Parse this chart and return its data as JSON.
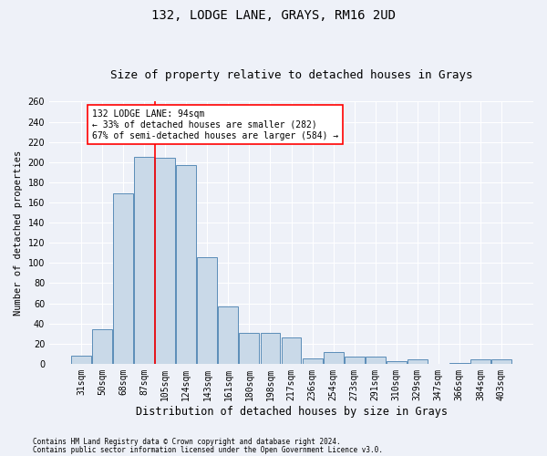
{
  "title1": "132, LODGE LANE, GRAYS, RM16 2UD",
  "title2": "Size of property relative to detached houses in Grays",
  "xlabel": "Distribution of detached houses by size in Grays",
  "ylabel": "Number of detached properties",
  "categories": [
    "31sqm",
    "50sqm",
    "68sqm",
    "87sqm",
    "105sqm",
    "124sqm",
    "143sqm",
    "161sqm",
    "180sqm",
    "198sqm",
    "217sqm",
    "236sqm",
    "254sqm",
    "273sqm",
    "291sqm",
    "310sqm",
    "329sqm",
    "347sqm",
    "366sqm",
    "384sqm",
    "403sqm"
  ],
  "values": [
    8,
    34,
    169,
    205,
    204,
    197,
    106,
    57,
    31,
    31,
    26,
    5,
    12,
    7,
    7,
    3,
    4,
    0,
    1,
    4,
    4
  ],
  "bar_color": "#c9d9e8",
  "bar_edge_color": "#5b8db8",
  "red_line_x": 3.5,
  "annotation_text": "132 LODGE LANE: 94sqm\n← 33% of detached houses are smaller (282)\n67% of semi-detached houses are larger (584) →",
  "annotation_box_color": "white",
  "annotation_box_edge_color": "red",
  "footnote1": "Contains HM Land Registry data © Crown copyright and database right 2024.",
  "footnote2": "Contains public sector information licensed under the Open Government Licence v3.0.",
  "ylim": [
    0,
    260
  ],
  "yticks": [
    0,
    20,
    40,
    60,
    80,
    100,
    120,
    140,
    160,
    180,
    200,
    220,
    240,
    260
  ],
  "background_color": "#eef1f8",
  "grid_color": "white",
  "title1_fontsize": 10,
  "title2_fontsize": 9,
  "xlabel_fontsize": 8.5,
  "ylabel_fontsize": 7.5,
  "tick_fontsize": 7,
  "annot_fontsize": 7,
  "footnote_fontsize": 5.5
}
